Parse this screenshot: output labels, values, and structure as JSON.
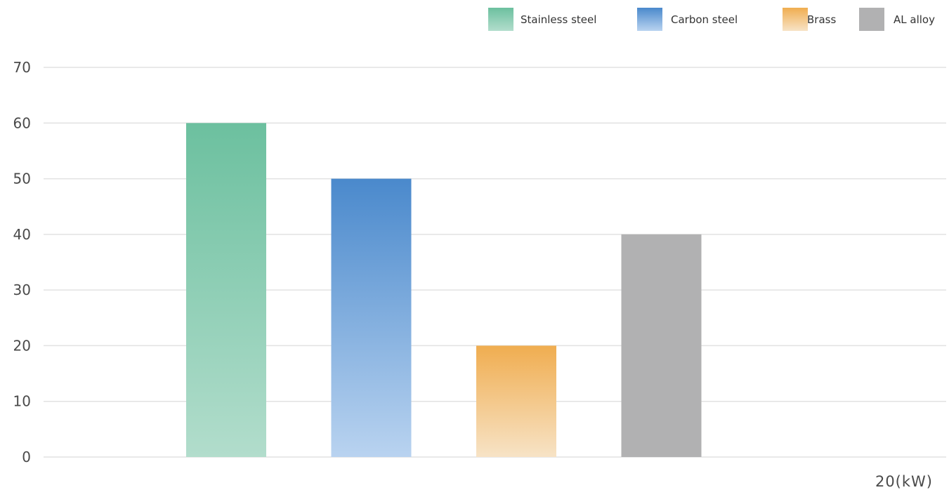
{
  "chart_data": {
    "type": "bar",
    "categories": [
      "20(kW)"
    ],
    "xlabel": "20(kW)",
    "ylabel": "",
    "title": "",
    "ylim": [
      0,
      70
    ],
    "yticks": [
      0,
      10,
      20,
      30,
      40,
      50,
      60,
      70
    ],
    "grid": true,
    "legend_position": "top-right",
    "series": [
      {
        "name": "Stainless steel",
        "values": [
          60
        ],
        "color_top": "#6cc09f",
        "color_bottom": "#b2ddcc"
      },
      {
        "name": "Carbon steel",
        "values": [
          50
        ],
        "color_top": "#4a89cc",
        "color_bottom": "#b9d3f0"
      },
      {
        "name": "Brass",
        "values": [
          20
        ],
        "color_top": "#f0ad50",
        "color_bottom": "#f7e3c6"
      },
      {
        "name": "AL alloy",
        "values": [
          40
        ],
        "color_top": "#b1b1b2",
        "color_bottom": "#b1b1b2"
      }
    ]
  }
}
